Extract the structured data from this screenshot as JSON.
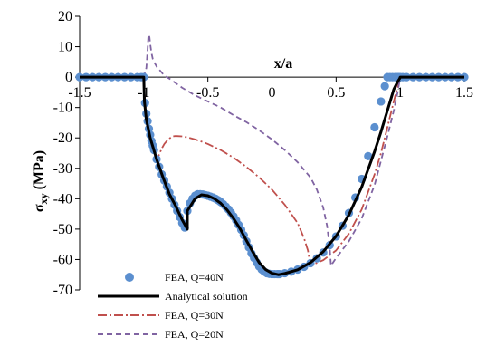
{
  "chart_data": {
    "type": "line",
    "xlabel": "x/a",
    "ylabel_main": "σ",
    "ylabel_sub": "xy",
    "ylabel_unit": " (MPa)",
    "xlim": [
      -1.5,
      1.5
    ],
    "ylim": [
      -70,
      20
    ],
    "x_ticks": [
      -1.5,
      -1,
      -0.5,
      0,
      0.5,
      1,
      1.5
    ],
    "x_tick_labels": [
      "-1.5",
      "-1",
      "-0.5",
      "0",
      "0.5",
      "1",
      "1.5"
    ],
    "y_ticks": [
      20,
      10,
      0,
      -10,
      -20,
      -30,
      -40,
      -50,
      -60,
      -70
    ],
    "y_tick_labels": [
      "20",
      "10",
      "0",
      "-10",
      "-20",
      "-30",
      "-40",
      "-50",
      "-60",
      "-70"
    ],
    "grid": false,
    "legend_position": "bottom-left",
    "series": [
      {
        "name": "FEA, Q=40N",
        "style": "markers",
        "color": "#5B8FCF",
        "x": [
          -1.5,
          -1.45,
          -1.4,
          -1.35,
          -1.3,
          -1.25,
          -1.2,
          -1.15,
          -1.1,
          -1.05,
          -1.02,
          -1.0,
          -0.99,
          -0.98,
          -0.97,
          -0.96,
          -0.95,
          -0.94,
          -0.93,
          -0.92,
          -0.9,
          -0.88,
          -0.86,
          -0.84,
          -0.82,
          -0.8,
          -0.78,
          -0.76,
          -0.74,
          -0.72,
          -0.7,
          -0.68,
          -0.66,
          -0.64,
          -0.62,
          -0.6,
          -0.58,
          -0.56,
          -0.54,
          -0.52,
          -0.5,
          -0.48,
          -0.46,
          -0.44,
          -0.42,
          -0.4,
          -0.38,
          -0.36,
          -0.34,
          -0.32,
          -0.3,
          -0.28,
          -0.26,
          -0.24,
          -0.22,
          -0.2,
          -0.18,
          -0.16,
          -0.14,
          -0.12,
          -0.1,
          -0.08,
          -0.06,
          -0.04,
          -0.02,
          0.0,
          0.02,
          0.04,
          0.05,
          0.06,
          0.1,
          0.15,
          0.2,
          0.25,
          0.3,
          0.35,
          0.4,
          0.45,
          0.5,
          0.55,
          0.6,
          0.65,
          0.7,
          0.75,
          0.8,
          0.85,
          0.88,
          0.9,
          0.92,
          0.94,
          0.96,
          0.97,
          0.98,
          0.99,
          1.0,
          1.02,
          1.05,
          1.1,
          1.15,
          1.2,
          1.25,
          1.3,
          1.35,
          1.4,
          1.45,
          1.5
        ],
        "y": [
          0,
          0,
          0,
          0,
          0,
          0,
          0,
          0,
          0,
          0,
          0,
          0,
          -8.5,
          -12,
          -14.5,
          -17,
          -19,
          -21,
          -22.5,
          -24,
          -27,
          -29.5,
          -32,
          -34,
          -36,
          -38,
          -40,
          -42,
          -44,
          -46,
          -48,
          -49.5,
          -44,
          -41.5,
          -40,
          -39,
          -38.5,
          -38.5,
          -38.6,
          -38.8,
          -39,
          -39.3,
          -39.6,
          -40,
          -40.5,
          -41.1,
          -41.8,
          -42.6,
          -43.5,
          -44.6,
          -45.8,
          -47.1,
          -48.6,
          -50.2,
          -52,
          -54,
          -56,
          -58,
          -59.5,
          -61,
          -62.3,
          -63.3,
          -64,
          -64.5,
          -64.7,
          -64.8,
          -64.8,
          -64.8,
          -64.8,
          -64.8,
          -64.5,
          -64,
          -63.3,
          -62.4,
          -61.2,
          -59.6,
          -57.7,
          -55.3,
          -52.4,
          -48.9,
          -44.7,
          -39.6,
          -33.5,
          -26,
          -16.5,
          -8,
          -3,
          0,
          0,
          0,
          0,
          0,
          0,
          0,
          0,
          0,
          0,
          0,
          0,
          0,
          0,
          0,
          0,
          0,
          0,
          0
        ]
      },
      {
        "name": "Analytical solution",
        "style": "solid",
        "color": "#000000",
        "x": [
          -1.5,
          -1.0,
          -0.995,
          -0.98,
          -0.95,
          -0.9,
          -0.85,
          -0.8,
          -0.75,
          -0.7,
          -0.66,
          -0.66,
          -0.6,
          -0.55,
          -0.5,
          -0.45,
          -0.4,
          -0.35,
          -0.3,
          -0.25,
          -0.2,
          -0.15,
          -0.1,
          -0.05,
          0.0,
          0.05,
          0.05,
          0.1,
          0.2,
          0.3,
          0.4,
          0.5,
          0.6,
          0.7,
          0.8,
          0.85,
          0.9,
          0.95,
          0.98,
          0.995,
          1.0,
          1.5
        ],
        "y": [
          0,
          0,
          -8,
          -14,
          -20,
          -27,
          -33,
          -38.5,
          -42.5,
          -47,
          -50,
          -44,
          -40,
          -38.7,
          -39,
          -40,
          -41.5,
          -43.7,
          -46.5,
          -49.8,
          -53.7,
          -57.5,
          -61,
          -63.3,
          -64.5,
          -65,
          -65,
          -64.6,
          -63.4,
          -61,
          -57.4,
          -52.3,
          -45.3,
          -36.1,
          -24.5,
          -18,
          -11,
          -4,
          -1.5,
          -0.5,
          0,
          0
        ]
      },
      {
        "name": "FEA, Q=30N",
        "style": "dashdot",
        "color": "#C0504D",
        "x": [
          -1.5,
          -1.0,
          -0.99,
          -0.98,
          -0.96,
          -0.94,
          -0.92,
          -0.9,
          -0.88,
          -0.86,
          -0.84,
          -0.82,
          -0.8,
          -0.78,
          -0.76,
          -0.74,
          -0.7,
          -0.65,
          -0.6,
          -0.55,
          -0.5,
          -0.4,
          -0.3,
          -0.2,
          -0.1,
          0.0,
          0.1,
          0.2,
          0.25,
          0.28,
          0.3,
          0.3,
          0.4,
          0.5,
          0.6,
          0.7,
          0.8,
          0.85,
          0.9,
          0.95,
          0.98,
          1.0,
          1.5
        ],
        "y": [
          0,
          0,
          -8,
          -12,
          -17,
          -21,
          -24.5,
          -27.5,
          -25.5,
          -23.5,
          -22,
          -21,
          -20.2,
          -19.6,
          -19.4,
          -19.4,
          -19.5,
          -19.9,
          -20.5,
          -21.2,
          -22,
          -24,
          -26.5,
          -29.5,
          -33,
          -37,
          -42,
          -48,
          -53,
          -57,
          -62,
          -62,
          -60.2,
          -57,
          -51.5,
          -43.5,
          -32,
          -25,
          -16.5,
          -8,
          -3,
          0,
          0
        ]
      },
      {
        "name": "FEA, Q=20N",
        "style": "dashed",
        "color": "#8064A2",
        "x": [
          -1.5,
          -1.0,
          -0.98,
          -0.97,
          -0.965,
          -0.96,
          -0.955,
          -0.95,
          -0.94,
          -0.93,
          -0.92,
          -0.9,
          -0.88,
          -0.86,
          -0.84,
          -0.8,
          -0.75,
          -0.7,
          -0.6,
          -0.5,
          -0.4,
          -0.3,
          -0.2,
          -0.1,
          0.0,
          0.1,
          0.2,
          0.3,
          0.35,
          0.4,
          0.43,
          0.45,
          0.46,
          0.46,
          0.5,
          0.6,
          0.7,
          0.8,
          0.85,
          0.9,
          0.95,
          0.98,
          1.0,
          1.5
        ],
        "y": [
          0,
          0,
          3,
          9,
          13,
          14,
          13,
          11,
          8,
          6,
          5,
          3.5,
          2.5,
          1.5,
          0.5,
          -0.5,
          -2,
          -3.5,
          -6,
          -8,
          -10,
          -12.5,
          -14.8,
          -17.5,
          -20.5,
          -24,
          -28,
          -33,
          -37,
          -43,
          -49,
          -56,
          -62,
          -62,
          -59.5,
          -54,
          -46.5,
          -35.5,
          -27.5,
          -19.5,
          -11,
          -5,
          0,
          0
        ]
      }
    ]
  }
}
